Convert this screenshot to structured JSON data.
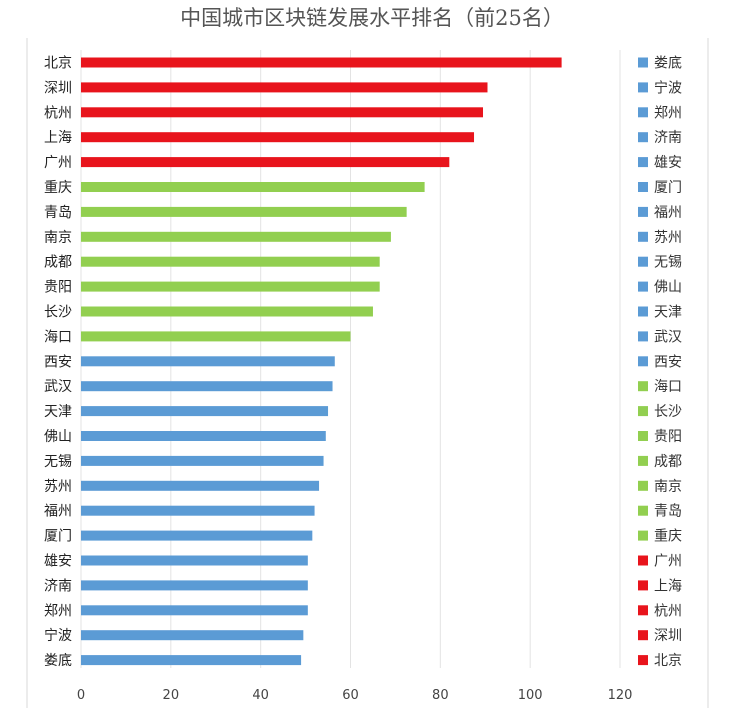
{
  "chart_data": {
    "type": "bar",
    "orientation": "horizontal",
    "title": "中国城市区块链发展水平排名（前25名）",
    "categories": [
      "北京",
      "深圳",
      "杭州",
      "上海",
      "广州",
      "重庆",
      "青岛",
      "南京",
      "成都",
      "贵阳",
      "长沙",
      "海口",
      "西安",
      "武汉",
      "天津",
      "佛山",
      "无锡",
      "苏州",
      "福州",
      "厦门",
      "雄安",
      "济南",
      "郑州",
      "宁波",
      "娄底"
    ],
    "values": [
      107,
      90.5,
      89.5,
      87.5,
      82,
      76.5,
      72.5,
      69,
      66.5,
      66.5,
      65,
      60,
      56.5,
      56,
      55,
      54.5,
      54,
      53,
      52,
      51.5,
      50.5,
      50.5,
      50.5,
      49.5,
      49
    ],
    "tiers": [
      "red",
      "red",
      "red",
      "red",
      "red",
      "green",
      "green",
      "green",
      "green",
      "green",
      "green",
      "green",
      "blue",
      "blue",
      "blue",
      "blue",
      "blue",
      "blue",
      "blue",
      "blue",
      "blue",
      "blue",
      "blue",
      "blue",
      "blue"
    ],
    "xlim": [
      0,
      120
    ],
    "xticks": [
      0,
      20,
      40,
      60,
      80,
      100,
      120
    ],
    "xlabel": "",
    "ylabel": "",
    "grid": true,
    "legend_position": "right",
    "legend_order": [
      "娄底",
      "宁波",
      "郑州",
      "济南",
      "雄安",
      "厦门",
      "福州",
      "苏州",
      "无锡",
      "佛山",
      "天津",
      "武汉",
      "西安",
      "海口",
      "长沙",
      "贵阳",
      "成都",
      "南京",
      "青岛",
      "重庆",
      "广州",
      "上海",
      "杭州",
      "深圳",
      "北京"
    ]
  },
  "colors": {
    "red": "#e8141c",
    "green": "#92cf50",
    "blue": "#5b9bd5"
  }
}
